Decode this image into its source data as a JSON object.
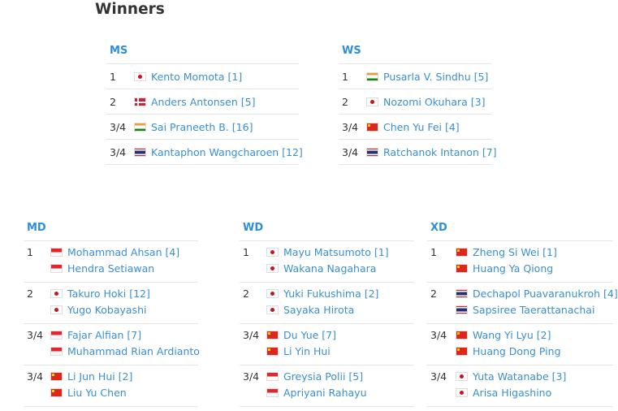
{
  "title": "Winners",
  "events": [
    {
      "id": "ms",
      "label": "MS",
      "rows": [
        {
          "rank": "1",
          "players": [
            {
              "flag": "jp",
              "name": "Kento Momota [1]"
            }
          ]
        },
        {
          "rank": "2",
          "players": [
            {
              "flag": "dk",
              "name": "Anders Antonsen [5]"
            }
          ]
        },
        {
          "rank": "3/4",
          "players": [
            {
              "flag": "in",
              "name": "Sai Praneeth B. [16]"
            }
          ]
        },
        {
          "rank": "3/4",
          "players": [
            {
              "flag": "th",
              "name": "Kantaphon Wangcharoen [12]"
            }
          ]
        }
      ]
    },
    {
      "id": "ws",
      "label": "WS",
      "rows": [
        {
          "rank": "1",
          "players": [
            {
              "flag": "in",
              "name": "Pusarla V. Sindhu [5]"
            }
          ]
        },
        {
          "rank": "2",
          "players": [
            {
              "flag": "jp",
              "name": "Nozomi Okuhara [3]"
            }
          ]
        },
        {
          "rank": "3/4",
          "players": [
            {
              "flag": "cn",
              "name": "Chen Yu Fei [4]"
            }
          ]
        },
        {
          "rank": "3/4",
          "players": [
            {
              "flag": "th",
              "name": "Ratchanok Intanon [7]"
            }
          ]
        }
      ]
    },
    {
      "id": "md",
      "label": "MD",
      "rows": [
        {
          "rank": "1",
          "players": [
            {
              "flag": "id",
              "name": "Mohammad Ahsan [4]"
            },
            {
              "flag": "id",
              "name": "Hendra Setiawan"
            }
          ]
        },
        {
          "rank": "2",
          "players": [
            {
              "flag": "jp",
              "name": "Takuro Hoki [12]"
            },
            {
              "flag": "jp",
              "name": "Yugo Kobayashi"
            }
          ]
        },
        {
          "rank": "3/4",
          "players": [
            {
              "flag": "id",
              "name": "Fajar Alfian [7]"
            },
            {
              "flag": "id",
              "name": "Muhammad Rian Ardianto"
            }
          ]
        },
        {
          "rank": "3/4",
          "players": [
            {
              "flag": "cn",
              "name": "Li Jun Hui [2]"
            },
            {
              "flag": "cn",
              "name": "Liu Yu Chen"
            }
          ]
        }
      ]
    },
    {
      "id": "wd",
      "label": "WD",
      "rows": [
        {
          "rank": "1",
          "players": [
            {
              "flag": "jp",
              "name": "Mayu Matsumoto [1]"
            },
            {
              "flag": "jp",
              "name": "Wakana Nagahara"
            }
          ]
        },
        {
          "rank": "2",
          "players": [
            {
              "flag": "jp",
              "name": "Yuki Fukushima [2]"
            },
            {
              "flag": "jp",
              "name": "Sayaka Hirota"
            }
          ]
        },
        {
          "rank": "3/4",
          "players": [
            {
              "flag": "cn",
              "name": "Du Yue [7]"
            },
            {
              "flag": "cn",
              "name": "Li Yin Hui"
            }
          ]
        },
        {
          "rank": "3/4",
          "players": [
            {
              "flag": "id",
              "name": "Greysia Polii [5]"
            },
            {
              "flag": "id",
              "name": "Apriyani Rahayu"
            }
          ]
        }
      ]
    },
    {
      "id": "xd",
      "label": "XD",
      "rows": [
        {
          "rank": "1",
          "players": [
            {
              "flag": "cn",
              "name": "Zheng Si Wei [1]"
            },
            {
              "flag": "cn",
              "name": "Huang Ya Qiong"
            }
          ]
        },
        {
          "rank": "2",
          "players": [
            {
              "flag": "th",
              "name": "Dechapol Puavaranukroh [4]"
            },
            {
              "flag": "th",
              "name": "Sapsiree Taerattanachai"
            }
          ]
        },
        {
          "rank": "3/4",
          "players": [
            {
              "flag": "cn",
              "name": "Wang Yi Lyu [2]"
            },
            {
              "flag": "cn",
              "name": "Huang Dong Ping"
            }
          ]
        },
        {
          "rank": "3/4",
          "players": [
            {
              "flag": "jp",
              "name": "Yuta Watanabe [3]"
            },
            {
              "flag": "jp",
              "name": "Arisa Higashino"
            }
          ]
        }
      ]
    }
  ]
}
